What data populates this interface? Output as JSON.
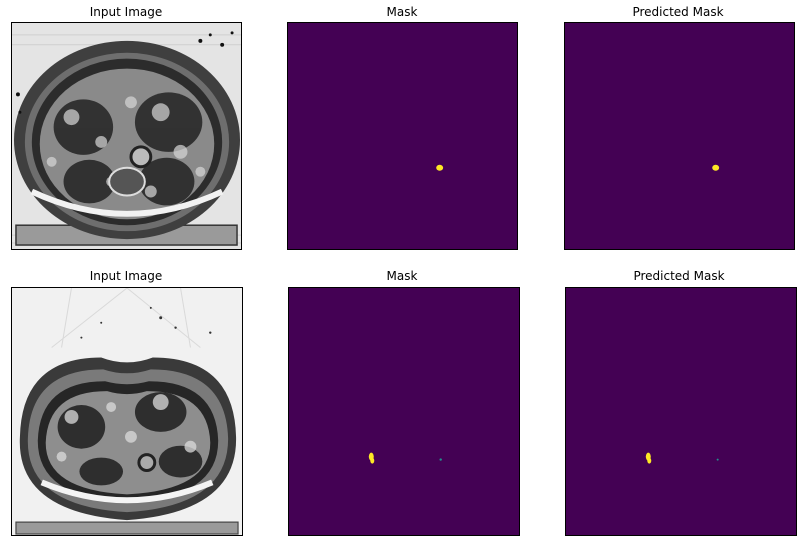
{
  "panels": {
    "row1_input_title": "Input Image",
    "row1_mask_title": "Mask",
    "row1_pred_title": "Predicted Mask",
    "row2_input_title": "Input Image",
    "row2_mask_title": "Mask",
    "row2_pred_title": "Predicted Mask"
  },
  "colors": {
    "mask_background": "#440154",
    "mask_foreground": "#fde725",
    "mask_edge": "#21918c"
  }
}
